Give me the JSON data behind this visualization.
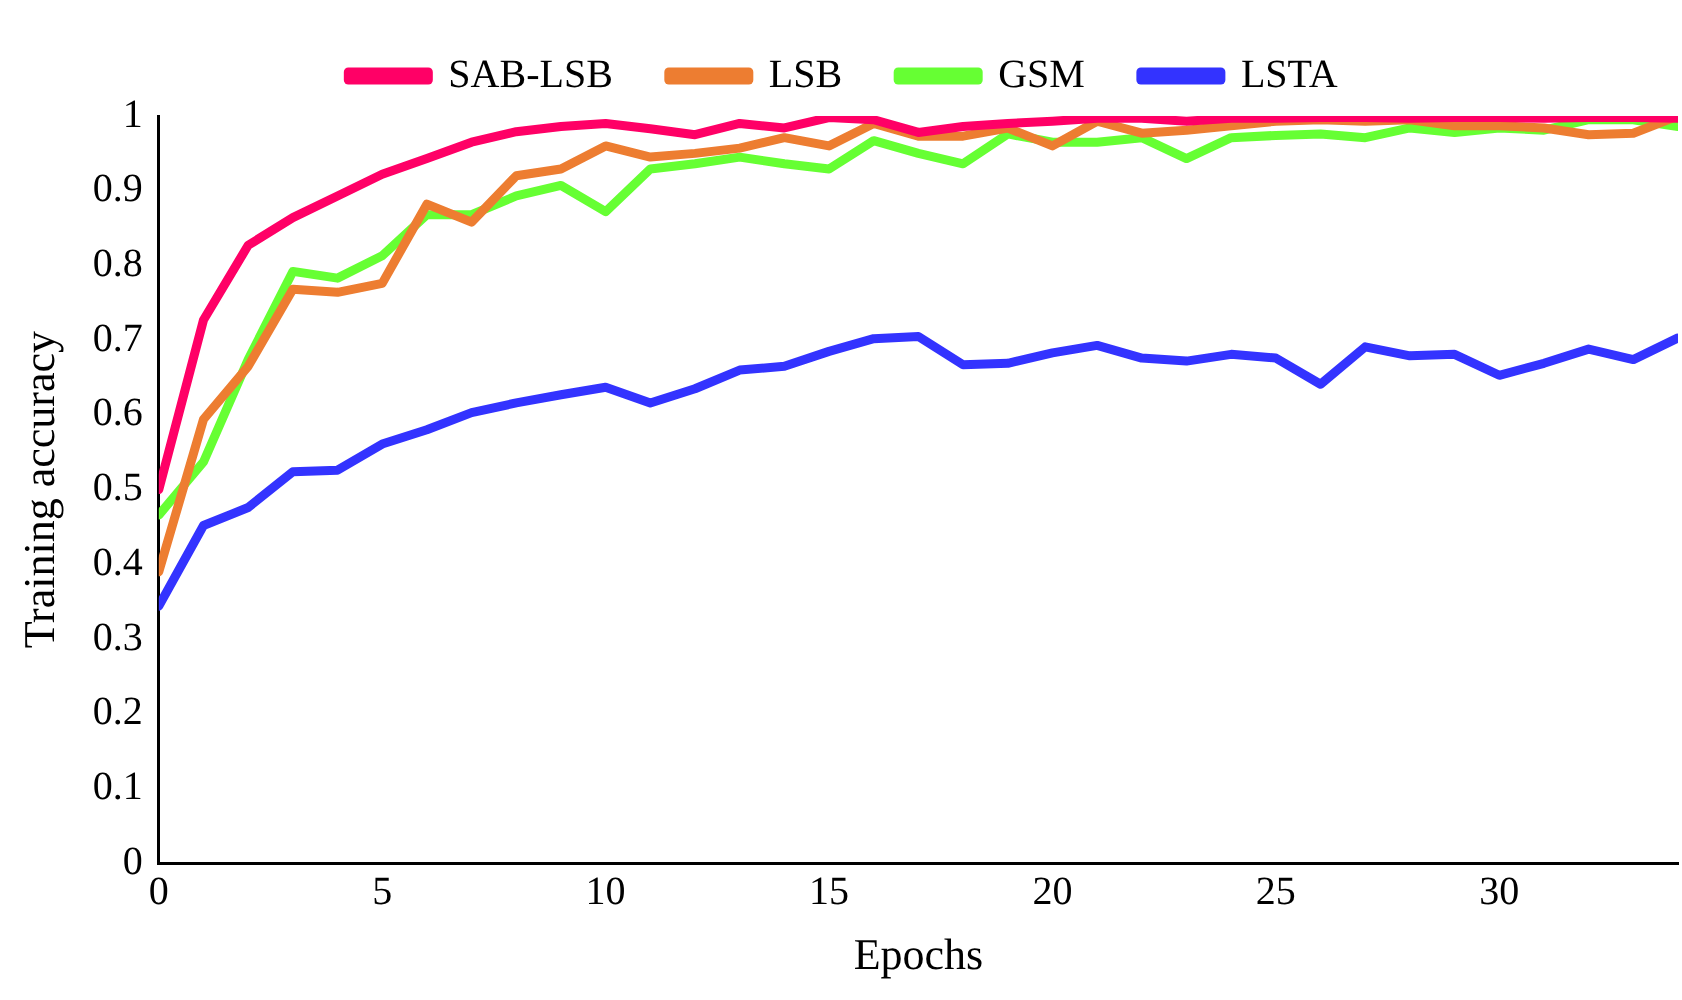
{
  "chart_data": {
    "type": "line",
    "xlabel": "Epochs",
    "ylabel": "Training accuracy",
    "x": [
      0,
      1,
      2,
      3,
      4,
      5,
      6,
      7,
      8,
      9,
      10,
      11,
      12,
      13,
      14,
      15,
      16,
      17,
      18,
      19,
      20,
      21,
      22,
      23,
      24,
      25,
      26,
      27,
      28,
      29,
      30,
      31,
      32,
      33,
      34
    ],
    "series": [
      {
        "name": "SAB-LSB",
        "color": "#ff0066",
        "values": [
          0.5,
          0.727,
          0.827,
          0.864,
          0.893,
          0.922,
          0.943,
          0.965,
          0.979,
          0.986,
          0.99,
          0.983,
          0.975,
          0.99,
          0.984,
          0.998,
          0.995,
          0.978,
          0.986,
          0.99,
          0.993,
          0.997,
          0.997,
          0.993,
          0.997,
          0.997,
          0.998,
          0.998,
          0.997,
          0.998,
          0.998,
          0.997,
          0.998,
          0.998,
          0.997
        ]
      },
      {
        "name": "LSB",
        "color": "#ed7d31",
        "values": [
          0.39,
          0.594,
          0.665,
          0.768,
          0.764,
          0.776,
          0.882,
          0.858,
          0.92,
          0.929,
          0.96,
          0.945,
          0.95,
          0.957,
          0.971,
          0.96,
          0.99,
          0.973,
          0.973,
          0.984,
          0.96,
          0.993,
          0.977,
          0.981,
          0.987,
          0.993,
          0.995,
          0.993,
          0.995,
          0.987,
          0.987,
          0.984,
          0.975,
          0.977,
          1.0
        ]
      },
      {
        "name": "GSM",
        "color": "#66ff33",
        "values": [
          0.466,
          0.537,
          0.674,
          0.792,
          0.783,
          0.813,
          0.868,
          0.868,
          0.893,
          0.907,
          0.872,
          0.929,
          0.936,
          0.945,
          0.936,
          0.929,
          0.967,
          0.95,
          0.936,
          0.976,
          0.965,
          0.965,
          0.971,
          0.943,
          0.971,
          0.974,
          0.976,
          0.971,
          0.984,
          0.978,
          0.984,
          0.981,
          0.995,
          0.995,
          0.986
        ]
      },
      {
        "name": "LSTA",
        "color": "#3333ff",
        "values": [
          0.344,
          0.452,
          0.476,
          0.524,
          0.526,
          0.561,
          0.58,
          0.603,
          0.616,
          0.627,
          0.637,
          0.616,
          0.635,
          0.66,
          0.665,
          0.685,
          0.702,
          0.705,
          0.667,
          0.669,
          0.683,
          0.693,
          0.676,
          0.672,
          0.681,
          0.676,
          0.641,
          0.691,
          0.679,
          0.681,
          0.653,
          0.669,
          0.688,
          0.674,
          0.703
        ]
      }
    ],
    "xlim": [
      0,
      34
    ],
    "xticks": [
      0,
      5,
      10,
      15,
      20,
      25,
      30
    ],
    "ylim": [
      0,
      1
    ],
    "yticks": [
      0,
      0.1,
      0.2,
      0.3,
      0.4,
      0.5,
      0.6,
      0.7,
      0.8,
      0.9,
      1
    ],
    "grid": false,
    "legend": "top",
    "marker": "none",
    "line_style": "solid"
  }
}
